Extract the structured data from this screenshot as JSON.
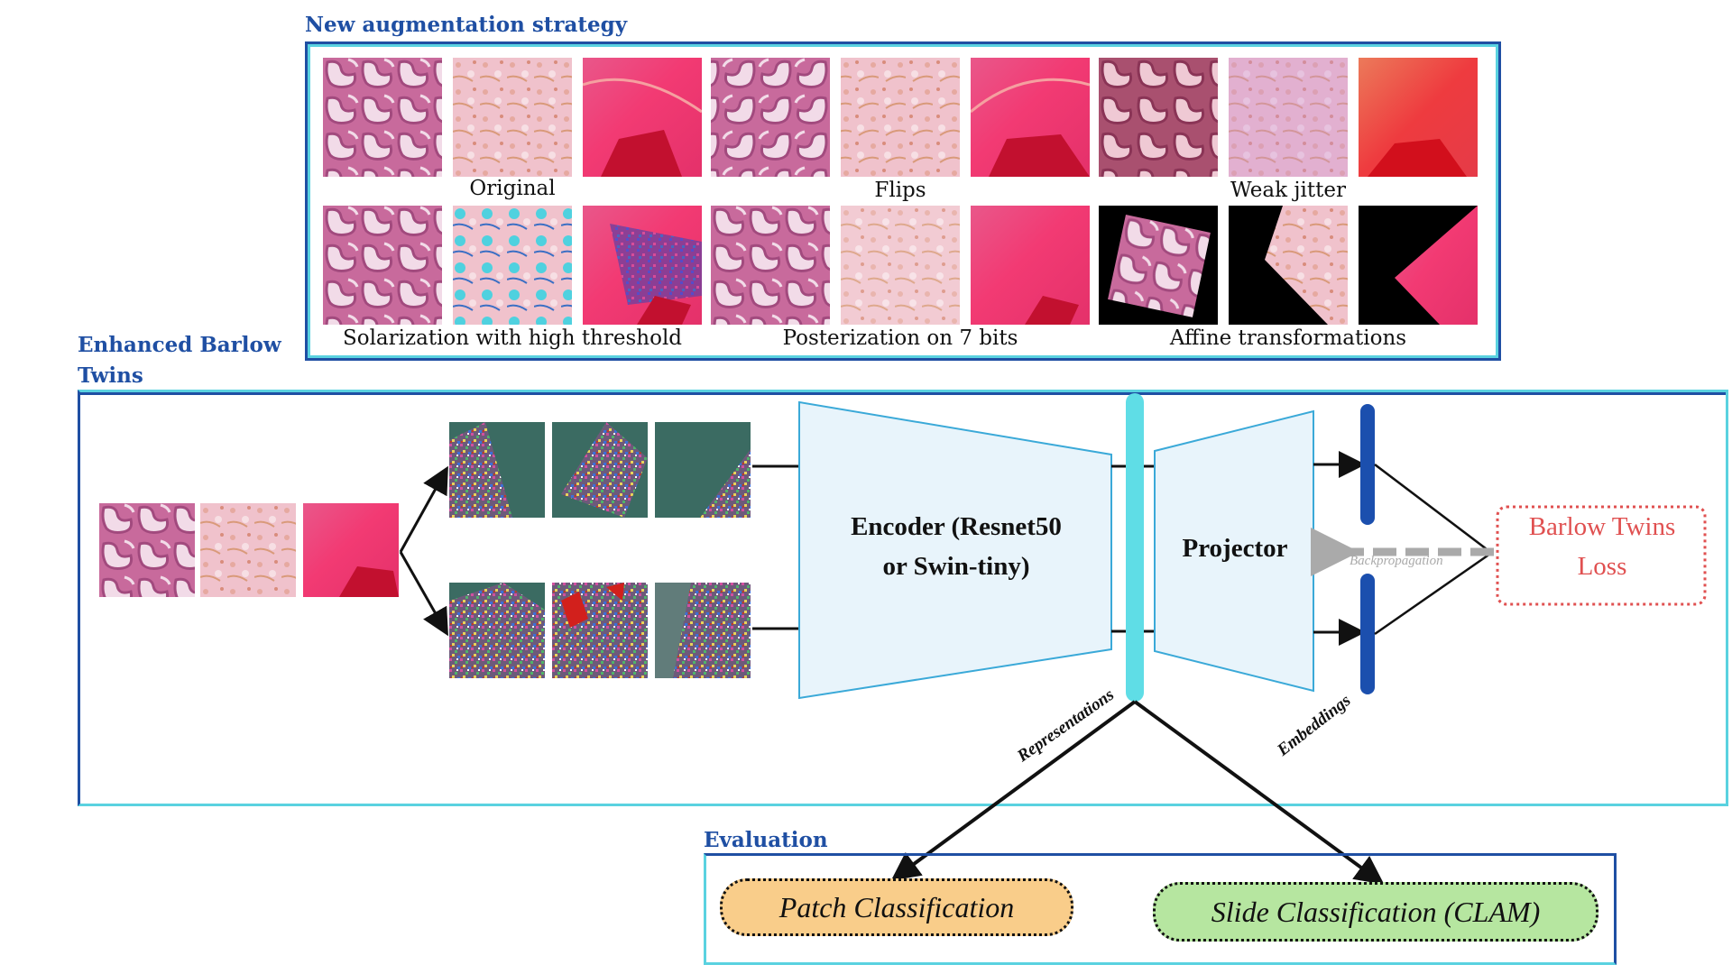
{
  "colors": {
    "title_blue": "#1f4fa3",
    "outer_frame_dark": "#1f4fa3",
    "outer_frame_light": "#5ad2e0",
    "encoder_fill": "#e8f4fb",
    "encoder_stroke": "#3aa9d8",
    "representation_bar": "#5fdde6",
    "embedding_bar": "#1b4fae",
    "loss_red": "#e05050",
    "patch_fill": "#f9cd8a",
    "slide_fill": "#b6e6a0",
    "backprop_gray": "#aaaaaa"
  },
  "augmentation": {
    "title": "New augmentation strategy",
    "row1_captions": [
      "Original",
      "Flips",
      "Weak jitter"
    ],
    "row2_captions": [
      "Solarization with high threshold",
      "Posterization on 7 bits",
      "Affine transformations"
    ]
  },
  "barlow": {
    "title": "Enhanced Barlow Twins",
    "encoder_label_line1": "Encoder (Resnet50",
    "encoder_label_line2": "or Swin-tiny)",
    "projector_label": "Projector",
    "representations_label": "Representations",
    "embeddings_label": "Embeddings",
    "backprop_label": "Backpropagation",
    "loss_label_line1": "Barlow Twins",
    "loss_label_line2": "Loss"
  },
  "evaluation": {
    "title": "Evaluation",
    "patch_label": "Patch Classification",
    "slide_label": "Slide Classification (CLAM)"
  }
}
